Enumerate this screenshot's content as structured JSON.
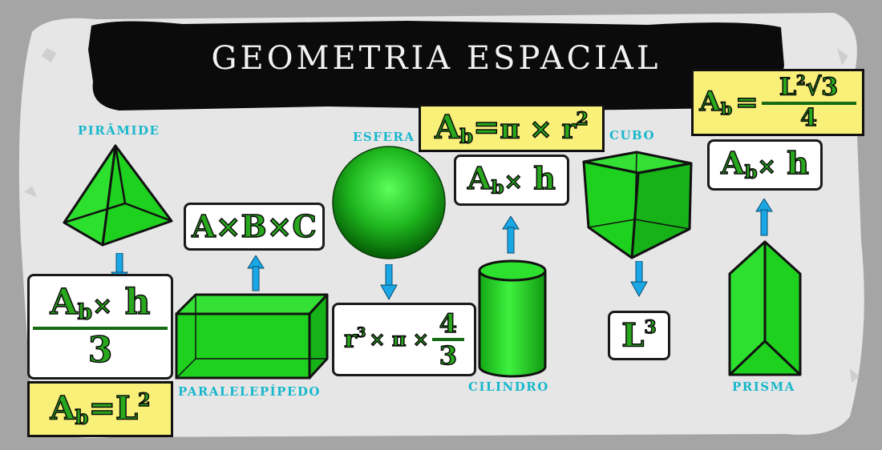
{
  "title": "GEOMETRIA ESPACIAL",
  "labels": {
    "piramide": "PIRÂMIDE",
    "paralelepipedo": "PARALELEPÍPEDO",
    "esfera": "ESFERA",
    "cilindro": "CILINDRO",
    "cubo": "CUBO",
    "prisma": "PRISMA"
  },
  "formulas": {
    "piramide_volume": {
      "base": "A",
      "sub": "b",
      "op": "×",
      "h": "h",
      "den": "3"
    },
    "piramide_base": {
      "base": "A",
      "sub": "b",
      "eq": "=",
      "rhs": "L",
      "exp": "2"
    },
    "paralelepipedo_volume": "A×B×C",
    "esfera_volume": {
      "r": "r",
      "exp": "3",
      "mid": "× π ×",
      "num": "4",
      "den": "3"
    },
    "cilindro_base": {
      "base": "A",
      "sub": "b",
      "eq": "=",
      "rhs": "π × r",
      "exp": "2"
    },
    "cilindro_volume": {
      "base": "A",
      "sub": "b",
      "op": "×",
      "h": "h"
    },
    "cubo_volume": {
      "l": "L",
      "exp": "3"
    },
    "prisma_base": {
      "base": "A",
      "sub": "b",
      "eq": "=",
      "num": "L",
      "exp": "2",
      "root": "√3",
      "den": "4"
    },
    "prisma_volume": {
      "base": "A",
      "sub": "b",
      "op": "×",
      "h": "h"
    }
  },
  "colors": {
    "solid_green": "#1fd11f",
    "arrow_blue": "#1aa7e6",
    "label_cyan": "#18b7cc",
    "highlight_yellow": "#f9f07a",
    "formula_green": "#29a81d"
  }
}
